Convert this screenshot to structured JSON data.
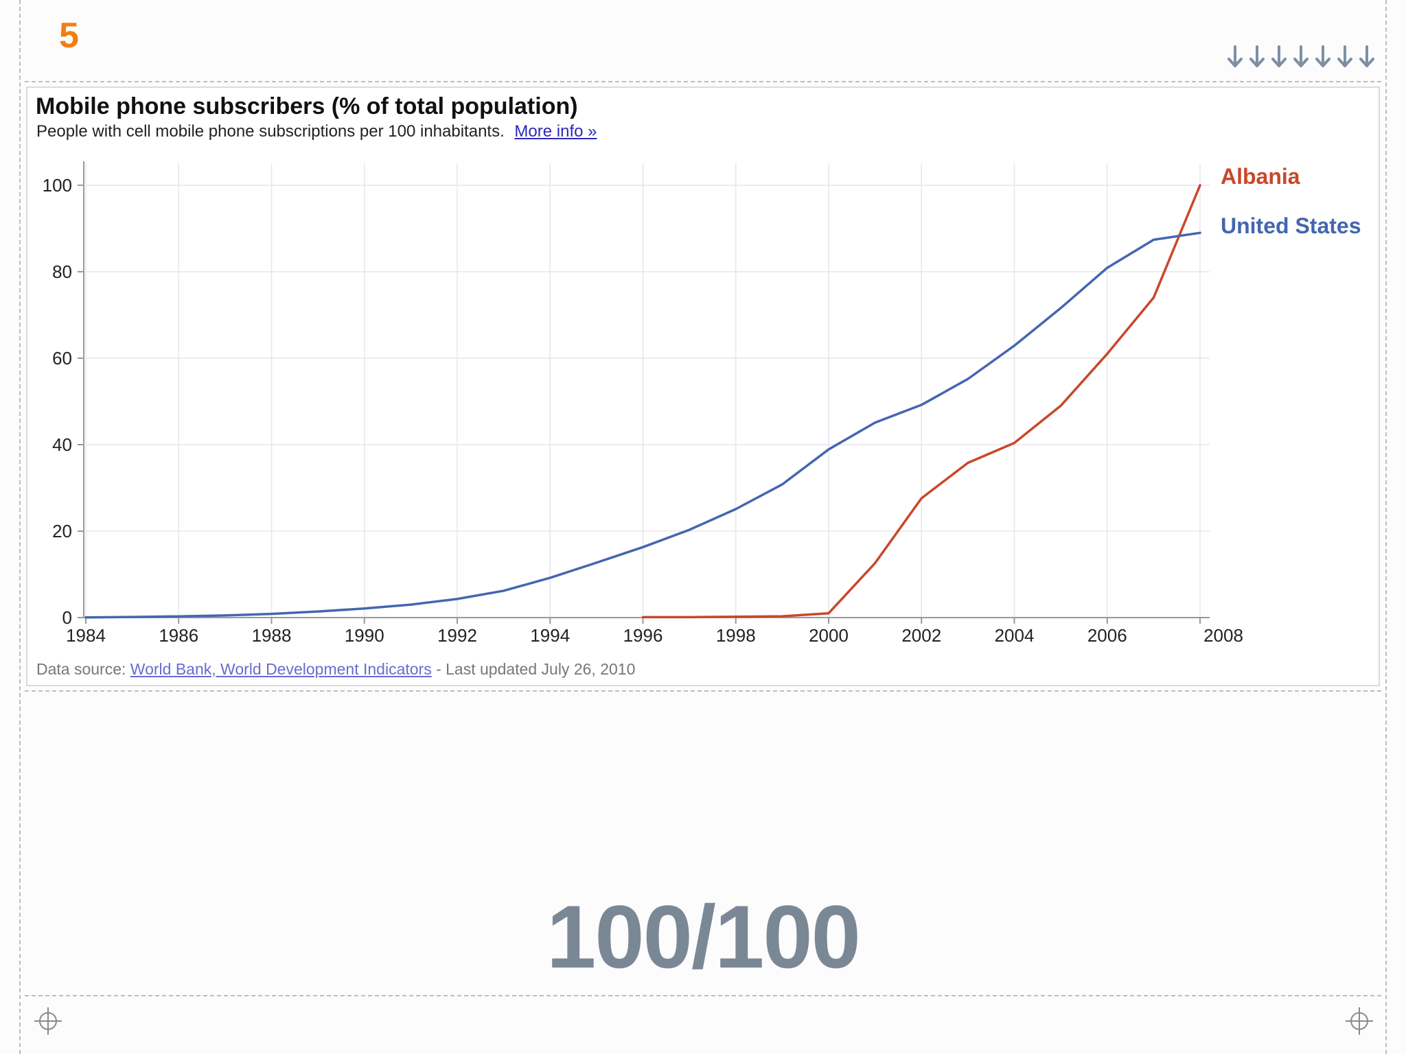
{
  "slide": {
    "number": "5",
    "score": "100/100",
    "accent_color": "#f07f10",
    "score_color": "#7a8896"
  },
  "nav": {
    "arrow_icon": "arrow-down-icon",
    "arrow_count": 7
  },
  "chart": {
    "title": "Mobile phone subscribers (% of total population)",
    "subtitle": "People with cell mobile phone subscriptions per 100 inhabitants.",
    "more_info": "More info »",
    "footer_prefix": "Data source: ",
    "source_link": "World Bank, World Development Indicators",
    "footer_suffix": " - Last updated July 26, 2010"
  },
  "chart_data": {
    "type": "line",
    "title": "Mobile phone subscribers (% of total population)",
    "subtitle": "People with cell mobile phone subscriptions per 100 inhabitants.",
    "xlabel": "",
    "ylabel": "",
    "xlim": [
      1984,
      2008
    ],
    "ylim": [
      0,
      100
    ],
    "x_ticks": [
      1984,
      1986,
      1988,
      1990,
      1992,
      1994,
      1996,
      1998,
      2000,
      2002,
      2004,
      2006,
      2008
    ],
    "y_ticks": [
      0,
      20,
      40,
      60,
      80,
      100
    ],
    "grid": true,
    "series": [
      {
        "name": "Albania",
        "color": "#c9472a",
        "x": [
          1996,
          1997,
          1998,
          1999,
          2000,
          2001,
          2002,
          2003,
          2004,
          2005,
          2006,
          2007,
          2008
        ],
        "values": [
          0.1,
          0.1,
          0.2,
          0.3,
          1.0,
          12.6,
          27.6,
          35.8,
          40.4,
          49.0,
          61.0,
          74.0,
          100.0
        ]
      },
      {
        "name": "United States",
        "color": "#4466b0",
        "x": [
          1984,
          1985,
          1986,
          1987,
          1988,
          1989,
          1990,
          1991,
          1992,
          1993,
          1994,
          1995,
          1996,
          1997,
          1998,
          1999,
          2000,
          2001,
          2002,
          2003,
          2004,
          2005,
          2006,
          2007,
          2008
        ],
        "values": [
          0.04,
          0.14,
          0.28,
          0.5,
          0.85,
          1.4,
          2.1,
          3.0,
          4.3,
          6.2,
          9.2,
          12.7,
          16.3,
          20.3,
          25.1,
          30.8,
          38.9,
          45.1,
          49.2,
          55.2,
          62.9,
          71.6,
          80.9,
          87.4,
          89.0
        ]
      }
    ]
  }
}
